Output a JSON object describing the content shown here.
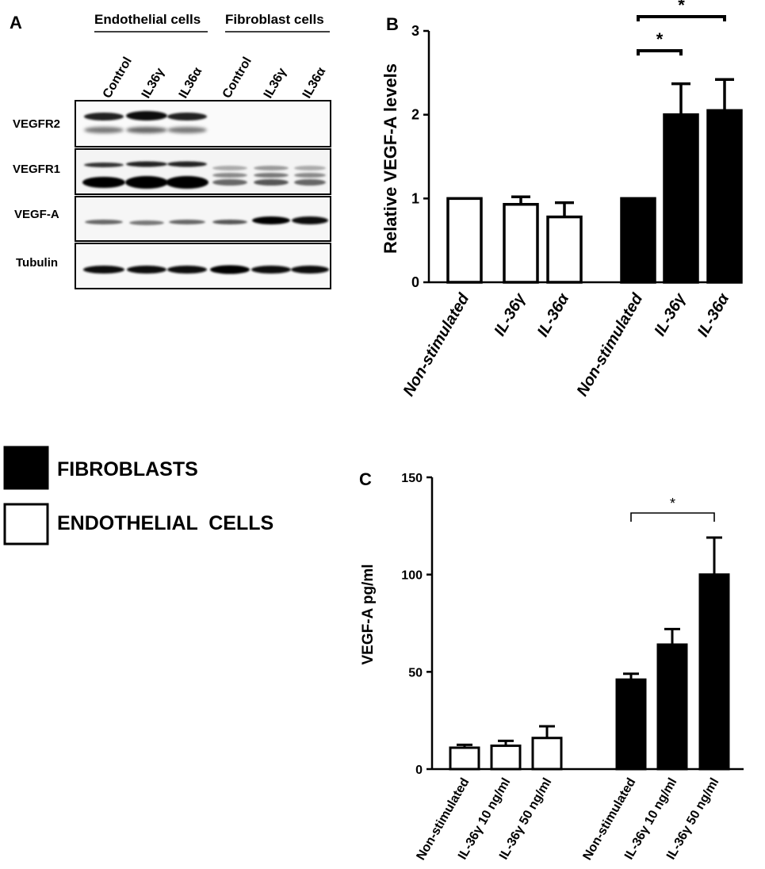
{
  "panel_a": {
    "letter": "A",
    "group_headers": [
      "Endothelial cells",
      "Fibroblast cells"
    ],
    "lanes": [
      {
        "label": "Control"
      },
      {
        "label": "IL36γ"
      },
      {
        "label": "IL36α"
      },
      {
        "label": "Control"
      },
      {
        "label": "IL36γ"
      },
      {
        "label": "IL36α"
      }
    ],
    "blots": [
      {
        "label": "VEGFR2"
      },
      {
        "label": "VEGFR1"
      },
      {
        "label": "VEGF-A"
      },
      {
        "label": "Tubulin"
      }
    ]
  },
  "legend": {
    "items": [
      {
        "label": "FIBROBLASTS",
        "color": "#000000"
      },
      {
        "label": "ENDOTHELIAL  CELLS",
        "color": "#ffffff"
      }
    ]
  },
  "chart_data": [
    {
      "panel": "B",
      "type": "bar",
      "ylabel": "Relative VEGF-A levels",
      "ylim": [
        0,
        3
      ],
      "yticks": [
        "0",
        "1",
        "2",
        "3"
      ],
      "categories": [
        "Non-stimulated",
        "IL-36γ",
        "IL-36α",
        "Non-stimulated",
        "IL-36γ",
        "IL-36α"
      ],
      "values": [
        1.0,
        0.93,
        0.78,
        1.0,
        2.0,
        2.05
      ],
      "errors": [
        0,
        0.09,
        0.17,
        0,
        0.37,
        0.37
      ],
      "fills": [
        "#ffffff",
        "#ffffff",
        "#ffffff",
        "#000000",
        "#000000",
        "#000000"
      ],
      "significance": [
        {
          "from": 3,
          "to": 4,
          "label": "*"
        },
        {
          "from": 3,
          "to": 5,
          "label": "*"
        }
      ]
    },
    {
      "panel": "C",
      "type": "bar",
      "ylabel": "VEGF-A pg/ml",
      "ylim": [
        0,
        150
      ],
      "yticks": [
        "0",
        "50",
        "100",
        "150"
      ],
      "categories": [
        "Non-stimulated",
        "IL-36γ 10 ng/ml",
        "IL-36γ 50 ng/ml",
        "Non-stimulated",
        "IL-36γ 10 ng/ml",
        "IL-36γ 50 ng/ml"
      ],
      "values": [
        11,
        12,
        16,
        46,
        64,
        100
      ],
      "errors": [
        1.5,
        2.5,
        6,
        3,
        8,
        19
      ],
      "fills": [
        "#ffffff",
        "#ffffff",
        "#ffffff",
        "#000000",
        "#000000",
        "#000000"
      ],
      "significance": [
        {
          "from": 3,
          "to": 5,
          "label": "*"
        }
      ]
    }
  ]
}
